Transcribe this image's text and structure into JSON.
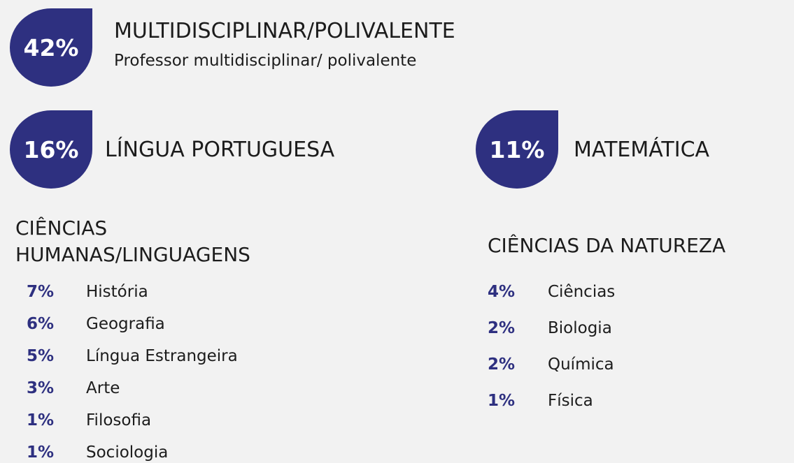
{
  "highlights": [
    {
      "percent": "42%",
      "title": "MULTIDISCIPLINAR/POLIVALENTE",
      "subtitle": "Professor multidisciplinar/ polivalente"
    },
    {
      "percent": "16%",
      "title": "LÍNGUA PORTUGUESA"
    },
    {
      "percent": "11%",
      "title": "MATEMÁTICA"
    }
  ],
  "groups": [
    {
      "title": "CIÊNCIAS HUMANAS/LINGUAGENS",
      "items": [
        {
          "percent": "7%",
          "label": "História"
        },
        {
          "percent": "6%",
          "label": "Geografia"
        },
        {
          "percent": "5%",
          "label": "Língua Estrangeira"
        },
        {
          "percent": "3%",
          "label": "Arte"
        },
        {
          "percent": "1%",
          "label": "Filosofia"
        },
        {
          "percent": "1%",
          "label": "Sociologia"
        }
      ]
    },
    {
      "title": "CIÊNCIAS DA NATUREZA",
      "items": [
        {
          "percent": "4%",
          "label": "Ciências"
        },
        {
          "percent": "2%",
          "label": "Biologia"
        },
        {
          "percent": "2%",
          "label": "Química"
        },
        {
          "percent": "1%",
          "label": "Física"
        }
      ]
    }
  ]
}
